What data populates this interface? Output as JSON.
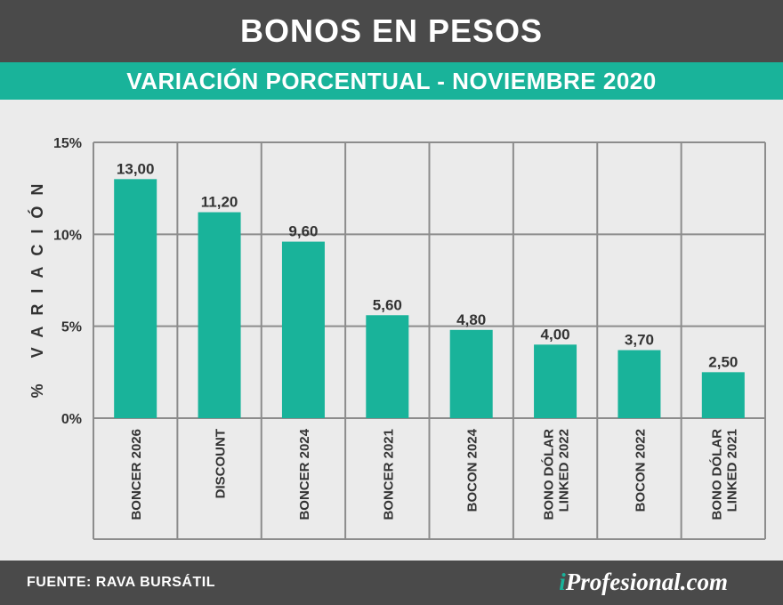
{
  "header": {
    "title": "BONOS EN PESOS",
    "subtitle": "VARIACIÓN PORCENTUAL - NOVIEMBRE 2020"
  },
  "footer": {
    "source": "FUENTE: RAVA BURSÁTIL",
    "logo_prefix": "i",
    "logo_rest": "Profesional.com"
  },
  "colors": {
    "header_bg": "#4a4a4a",
    "accent": "#19b39a",
    "bar": "#19b39a",
    "plot_bg": "#ebebeb",
    "grid": "#8c8c8c"
  },
  "chart_data": {
    "type": "bar",
    "ylabel": "% VARIACIÓN",
    "ylim": [
      0,
      15
    ],
    "y_ticks": [
      0,
      5,
      10,
      15
    ],
    "y_tick_labels": [
      "0%",
      "5%",
      "10%",
      "15%"
    ],
    "grid": true,
    "categories": [
      [
        "BONCER 2026"
      ],
      [
        "DISCOUNT"
      ],
      [
        "BONCER 2024"
      ],
      [
        "BONCER 2021"
      ],
      [
        "BOCON 2024"
      ],
      [
        "BONO DÓLAR",
        "LINKED 2022"
      ],
      [
        "BOCON 2022"
      ],
      [
        "BONO DÓLAR",
        "LINKED 2021"
      ]
    ],
    "values": [
      13.0,
      11.2,
      9.6,
      5.6,
      4.8,
      4.0,
      3.7,
      2.5
    ],
    "value_labels": [
      "13,00",
      "11,20",
      "9,60",
      "5,60",
      "4,80",
      "4,00",
      "3,70",
      "2,50"
    ]
  }
}
